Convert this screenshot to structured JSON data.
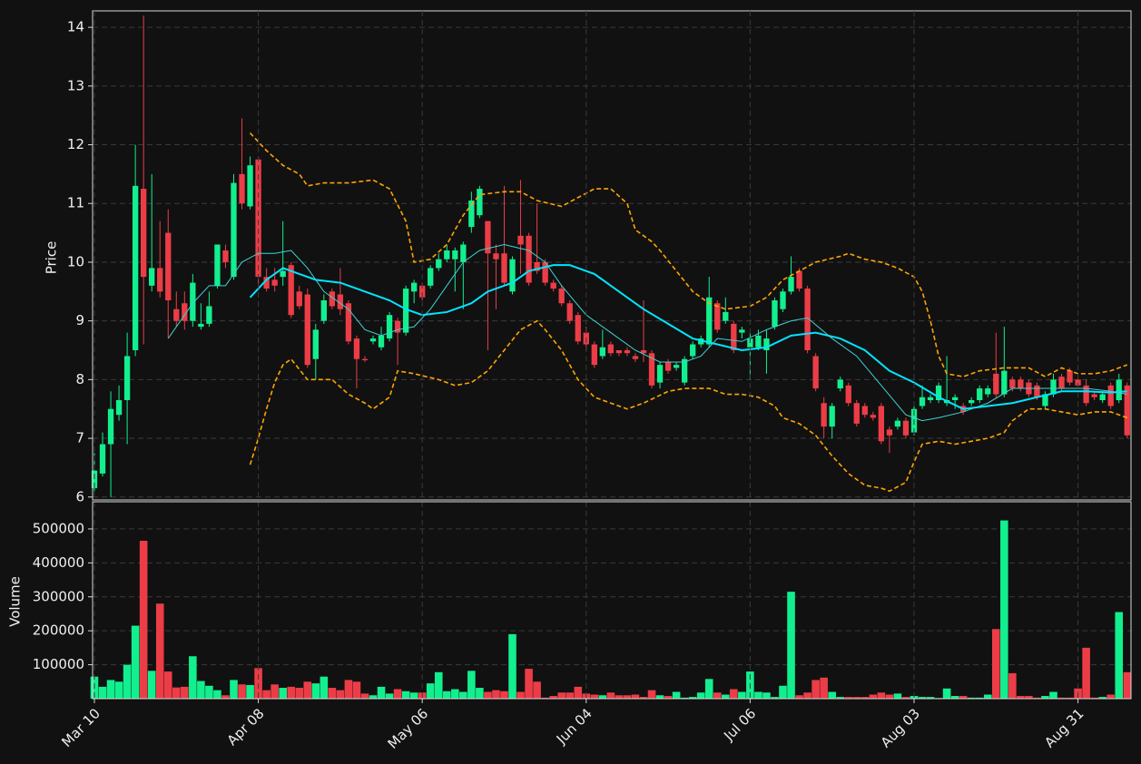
{
  "chart_data": [
    {
      "type": "candlestick",
      "y_label": "Price",
      "xlim": [
        -0.22,
        126.47
      ],
      "ylim": [
        5.95,
        14.28
      ],
      "yticks": [
        6,
        7,
        8,
        9,
        10,
        11,
        12,
        13,
        14
      ],
      "grid": true,
      "up_color": "#12ef8e",
      "down_color": "#ec3d47",
      "open": [
        6.15,
        6.4,
        6.9,
        7.4,
        7.65,
        8.5,
        11.25,
        9.6,
        9.9,
        10.5,
        9.2,
        9.3,
        9.0,
        8.9,
        8.95,
        9.6,
        10.2,
        9.75,
        11.5,
        10.95,
        11.75,
        9.75,
        9.7,
        9.75,
        9.95,
        9.5,
        9.45,
        8.35,
        9.0,
        9.5,
        9.45,
        9.3,
        8.7,
        8.35,
        8.65,
        8.55,
        8.7,
        9.0,
        8.8,
        9.5,
        9.6,
        9.6,
        9.9,
        10.05,
        10.05,
        10.0,
        10.6,
        10.8,
        10.7,
        10.15,
        10.15,
        9.5,
        10.45,
        10.45,
        10.0,
        10.0,
        9.65,
        9.55,
        9.3,
        9.1,
        8.8,
        8.6,
        8.4,
        8.6,
        8.5,
        8.5,
        8.4,
        8.5,
        8.45,
        7.95,
        8.3,
        8.2,
        7.95,
        8.4,
        8.6,
        8.6,
        9.3,
        9.0,
        8.95,
        8.8,
        8.55,
        8.55,
        8.5,
        8.9,
        9.2,
        9.5,
        9.85,
        9.55,
        8.4,
        7.6,
        7.2,
        7.85,
        7.9,
        7.6,
        7.55,
        7.4,
        7.55,
        7.15,
        7.2,
        7.3,
        7.1,
        7.55,
        7.65,
        7.65,
        7.6,
        7.65,
        7.55,
        7.6,
        7.65,
        7.75,
        8.1,
        7.75,
        8.0,
        8.0,
        7.95,
        7.9,
        7.55,
        7.75,
        8.05,
        8.15,
        8.0,
        7.9,
        7.75,
        7.65,
        7.9,
        7.65,
        7.9
      ],
      "high": [
        6.75,
        7.1,
        7.8,
        7.9,
        8.8,
        12.0,
        14.2,
        11.5,
        10.7,
        10.9,
        9.5,
        9.5,
        9.8,
        9.3,
        9.5,
        10.3,
        10.3,
        11.5,
        12.45,
        11.8,
        11.8,
        9.9,
        9.9,
        10.7,
        10.0,
        9.6,
        9.55,
        8.95,
        9.45,
        9.55,
        9.9,
        9.35,
        8.75,
        8.4,
        8.75,
        8.9,
        9.15,
        9.05,
        9.6,
        9.7,
        9.65,
        9.95,
        10.15,
        10.3,
        10.25,
        10.35,
        11.2,
        11.3,
        10.7,
        10.3,
        11.3,
        10.1,
        11.4,
        10.5,
        11.0,
        10.05,
        9.7,
        9.6,
        9.35,
        9.15,
        8.9,
        8.65,
        8.85,
        8.65,
        8.5,
        8.55,
        8.45,
        9.35,
        8.5,
        8.3,
        8.35,
        8.3,
        8.4,
        8.65,
        8.75,
        9.75,
        9.35,
        9.4,
        9.0,
        8.9,
        8.8,
        8.85,
        8.85,
        9.4,
        9.55,
        10.1,
        9.9,
        9.6,
        8.45,
        7.7,
        7.6,
        8.05,
        7.95,
        7.65,
        7.6,
        7.45,
        7.6,
        7.2,
        7.35,
        7.35,
        7.55,
        7.9,
        7.75,
        7.95,
        8.4,
        7.75,
        7.6,
        7.7,
        7.9,
        7.9,
        8.8,
        8.9,
        8.05,
        8.05,
        8.0,
        7.95,
        7.8,
        8.1,
        8.1,
        8.2,
        8.05,
        8.0,
        7.8,
        7.8,
        7.95,
        8.1,
        7.95
      ],
      "low": [
        6.1,
        6.35,
        6.0,
        7.3,
        6.9,
        8.4,
        8.6,
        9.5,
        9.4,
        8.7,
        8.9,
        8.85,
        8.9,
        8.85,
        8.9,
        9.55,
        9.9,
        9.7,
        10.9,
        10.9,
        9.6,
        9.5,
        9.5,
        9.6,
        9.05,
        9.2,
        8.2,
        8.0,
        8.95,
        9.2,
        9.1,
        8.6,
        7.85,
        8.3,
        8.6,
        8.5,
        8.65,
        8.25,
        8.75,
        9.3,
        9.35,
        9.55,
        9.85,
        10.0,
        9.5,
        9.2,
        10.5,
        10.75,
        8.5,
        9.2,
        9.6,
        9.45,
        9.8,
        9.6,
        9.8,
        9.6,
        9.5,
        9.25,
        8.95,
        8.6,
        8.5,
        8.2,
        8.35,
        8.4,
        8.4,
        8.4,
        8.3,
        8.3,
        7.85,
        7.85,
        8.1,
        8.15,
        7.9,
        8.35,
        8.55,
        8.55,
        8.8,
        8.95,
        8.45,
        8.7,
        8.0,
        8.5,
        8.1,
        8.85,
        9.15,
        9.45,
        9.5,
        8.45,
        7.8,
        7.0,
        7.0,
        7.8,
        7.55,
        7.2,
        7.35,
        7.3,
        6.9,
        6.75,
        7.15,
        7.0,
        7.05,
        7.5,
        7.6,
        7.6,
        7.55,
        7.5,
        7.4,
        7.55,
        7.6,
        7.7,
        7.7,
        7.7,
        7.8,
        7.8,
        7.7,
        7.65,
        7.5,
        7.7,
        7.8,
        7.9,
        7.85,
        7.55,
        7.65,
        7.6,
        7.5,
        7.6,
        7.0
      ],
      "close": [
        6.45,
        6.9,
        7.5,
        7.65,
        8.4,
        11.3,
        9.75,
        9.9,
        9.5,
        9.35,
        9.0,
        9.0,
        9.65,
        8.95,
        9.25,
        10.3,
        10.0,
        11.35,
        11.0,
        11.65,
        9.75,
        9.55,
        9.6,
        9.85,
        9.1,
        9.25,
        8.25,
        8.85,
        9.35,
        9.25,
        9.2,
        8.65,
        8.35,
        8.33,
        8.7,
        8.75,
        9.1,
        8.8,
        9.55,
        9.65,
        9.4,
        9.9,
        10.05,
        10.2,
        10.2,
        10.3,
        11.05,
        11.25,
        10.15,
        10.05,
        9.65,
        10.05,
        10.3,
        9.65,
        9.85,
        9.65,
        9.55,
        9.3,
        9.0,
        8.65,
        8.6,
        8.25,
        8.55,
        8.45,
        8.45,
        8.45,
        8.35,
        8.45,
        7.9,
        8.25,
        8.15,
        8.25,
        8.35,
        8.6,
        8.7,
        9.4,
        8.85,
        9.15,
        8.5,
        8.85,
        8.7,
        8.75,
        8.7,
        9.35,
        9.5,
        9.75,
        9.55,
        8.5,
        7.85,
        7.2,
        7.55,
        8.0,
        7.6,
        7.25,
        7.4,
        7.35,
        6.95,
        7.05,
        7.3,
        7.05,
        7.5,
        7.7,
        7.7,
        7.9,
        7.65,
        7.7,
        7.45,
        7.65,
        7.85,
        7.85,
        7.75,
        8.15,
        7.85,
        7.85,
        7.75,
        7.7,
        7.75,
        8.0,
        7.85,
        7.95,
        7.9,
        7.6,
        7.7,
        7.75,
        7.55,
        8.0,
        7.05
      ],
      "lines": [
        {
          "color": "#00e5ff",
          "width": 2,
          "dashed": false,
          "x": [
            19,
            21,
            23,
            25,
            27,
            30,
            33,
            36,
            38,
            40,
            43,
            46,
            48,
            51,
            53,
            56,
            58,
            61,
            64,
            67,
            70,
            73,
            76,
            79,
            82,
            85,
            88,
            91,
            94,
            97,
            100,
            103,
            106,
            109,
            112,
            115,
            118,
            121,
            124,
            126
          ],
          "values": [
            9.4,
            9.7,
            9.9,
            9.8,
            9.7,
            9.65,
            9.5,
            9.35,
            9.2,
            9.1,
            9.15,
            9.3,
            9.5,
            9.65,
            9.85,
            9.95,
            9.95,
            9.8,
            9.5,
            9.2,
            8.95,
            8.7,
            8.6,
            8.5,
            8.55,
            8.75,
            8.8,
            8.7,
            8.5,
            8.15,
            7.95,
            7.7,
            7.5,
            7.55,
            7.6,
            7.7,
            7.8,
            7.8,
            7.78,
            7.8
          ]
        },
        {
          "color": "#3fd3d3",
          "width": 1,
          "dashed": false,
          "x": [
            9,
            12,
            14,
            16,
            18,
            20,
            22,
            24,
            26,
            28,
            31,
            33,
            35,
            37,
            39,
            41,
            43,
            45,
            47,
            50,
            53,
            55,
            57,
            60,
            63,
            66,
            69,
            72,
            74,
            76,
            79,
            82,
            85,
            87,
            90,
            93,
            96,
            99,
            101,
            103,
            106,
            109,
            112,
            115,
            118,
            121,
            124,
            126
          ],
          "values": [
            8.7,
            9.3,
            9.6,
            9.6,
            10.0,
            10.15,
            10.15,
            10.2,
            9.9,
            9.5,
            9.2,
            8.85,
            8.75,
            8.85,
            8.9,
            9.2,
            9.6,
            10.0,
            10.2,
            10.3,
            10.2,
            10.0,
            9.6,
            9.1,
            8.8,
            8.5,
            8.3,
            8.3,
            8.4,
            8.7,
            8.65,
            8.85,
            9.0,
            9.05,
            8.7,
            8.4,
            7.9,
            7.4,
            7.3,
            7.35,
            7.45,
            7.6,
            7.85,
            7.85,
            7.85,
            7.85,
            7.8,
            7.75
          ]
        },
        {
          "color": "#ffa500",
          "width": 1.6,
          "dashed": true,
          "x": [
            19,
            21,
            23,
            25,
            26,
            28,
            31,
            34,
            36,
            38,
            39,
            41,
            43,
            45,
            47,
            50,
            52,
            54,
            57,
            59,
            61,
            63,
            65,
            66,
            68,
            69,
            71,
            73,
            75,
            77,
            80,
            82,
            84,
            86,
            88,
            91,
            92,
            94,
            96,
            98,
            100,
            101,
            102,
            103,
            104,
            106,
            108,
            111,
            114,
            116,
            118,
            120,
            122,
            124,
            126
          ],
          "values": [
            12.2,
            11.9,
            11.65,
            11.5,
            11.3,
            11.35,
            11.35,
            11.4,
            11.25,
            10.7,
            10.0,
            10.05,
            10.3,
            10.8,
            11.15,
            11.2,
            11.2,
            11.05,
            10.95,
            11.1,
            11.25,
            11.25,
            11.0,
            10.55,
            10.35,
            10.2,
            9.85,
            9.5,
            9.3,
            9.2,
            9.25,
            9.4,
            9.7,
            9.85,
            10.0,
            10.1,
            10.15,
            10.05,
            10.0,
            9.9,
            9.75,
            9.5,
            9.0,
            8.4,
            8.1,
            8.05,
            8.15,
            8.2,
            8.2,
            8.05,
            8.2,
            8.1,
            8.1,
            8.15,
            8.25
          ]
        },
        {
          "color": "#ffa500",
          "width": 1.6,
          "dashed": true,
          "x": [
            19,
            20,
            21,
            22,
            23,
            24,
            26,
            29,
            31,
            33,
            34,
            36,
            37,
            39,
            42,
            44,
            46,
            48,
            50,
            52,
            54,
            55,
            57,
            59,
            61,
            63,
            65,
            67,
            70,
            72,
            75,
            77,
            79,
            81,
            83,
            84,
            86,
            88,
            90,
            92,
            94,
            96,
            97,
            99,
            100,
            101,
            103,
            105,
            107,
            109,
            111,
            112,
            114,
            116,
            118,
            120,
            122,
            124,
            126
          ],
          "values": [
            6.55,
            7.0,
            7.5,
            7.95,
            8.25,
            8.35,
            8.0,
            8.0,
            7.75,
            7.6,
            7.5,
            7.7,
            8.15,
            8.1,
            8.0,
            7.9,
            7.95,
            8.15,
            8.5,
            8.85,
            9.0,
            8.85,
            8.5,
            8.0,
            7.7,
            7.6,
            7.5,
            7.6,
            7.8,
            7.85,
            7.85,
            7.75,
            7.75,
            7.7,
            7.55,
            7.35,
            7.25,
            7.05,
            6.7,
            6.4,
            6.2,
            6.15,
            6.1,
            6.25,
            6.6,
            6.9,
            6.95,
            6.9,
            6.95,
            7.0,
            7.1,
            7.3,
            7.5,
            7.5,
            7.45,
            7.4,
            7.45,
            7.45,
            7.35
          ]
        }
      ]
    },
    {
      "type": "bar",
      "y_label": "Volume",
      "xlim": [
        -0.22,
        126.47
      ],
      "ylim": [
        0,
        580000
      ],
      "yticks": [
        100000,
        200000,
        300000,
        400000,
        500000
      ],
      "grid": true,
      "categories": [
        "Mar 10",
        null,
        null,
        null,
        null,
        null,
        null,
        null,
        null,
        null,
        null,
        null,
        null,
        null,
        null,
        null,
        null,
        null,
        null,
        null,
        "Apr 08",
        null,
        null,
        null,
        null,
        null,
        null,
        null,
        null,
        null,
        null,
        null,
        null,
        null,
        null,
        null,
        null,
        null,
        null,
        null,
        "May 06",
        null,
        null,
        null,
        null,
        null,
        null,
        null,
        null,
        null,
        null,
        null,
        null,
        null,
        null,
        null,
        null,
        null,
        null,
        null,
        "Jun 04",
        null,
        null,
        null,
        null,
        null,
        null,
        null,
        null,
        null,
        null,
        null,
        null,
        null,
        null,
        null,
        null,
        null,
        null,
        null,
        "Jul 06",
        null,
        null,
        null,
        null,
        null,
        null,
        null,
        null,
        null,
        null,
        null,
        null,
        null,
        null,
        null,
        null,
        null,
        null,
        null,
        "Aug 03",
        null,
        null,
        null,
        null,
        null,
        null,
        null,
        null,
        null,
        null,
        null,
        null,
        null,
        null,
        null,
        null,
        null,
        null,
        null,
        "Aug 31",
        null,
        null,
        null,
        null,
        null,
        null
      ],
      "values": [
        65000,
        35000,
        55000,
        50000,
        100000,
        215000,
        465000,
        82000,
        280000,
        80000,
        33000,
        35000,
        125000,
        52000,
        38000,
        25000,
        10000,
        55000,
        42000,
        40000,
        90000,
        25000,
        42000,
        32000,
        35000,
        32000,
        50000,
        45000,
        65000,
        32000,
        25000,
        55000,
        50000,
        15000,
        10000,
        35000,
        15000,
        28000,
        22000,
        18000,
        18000,
        45000,
        78000,
        22000,
        28000,
        20000,
        82000,
        32000,
        20000,
        25000,
        22000,
        190000,
        20000,
        88000,
        50000,
        3000,
        8000,
        18000,
        18000,
        35000,
        15000,
        12000,
        10000,
        18000,
        10000,
        10000,
        12000,
        5000,
        25000,
        10000,
        8000,
        20000,
        3000,
        5000,
        18000,
        58000,
        18000,
        12000,
        28000,
        20000,
        80000,
        20000,
        18000,
        5000,
        38000,
        315000,
        10000,
        18000,
        55000,
        62000,
        20000,
        5000,
        5000,
        5000,
        5000,
        12000,
        18000,
        12000,
        15000,
        5000,
        8000,
        5000,
        5000,
        2000,
        30000,
        8000,
        8000,
        3000,
        3000,
        12000,
        205000,
        525000,
        75000,
        8000,
        8000,
        3000,
        8000,
        20000,
        3000,
        3000,
        30000,
        150000,
        3000,
        5000,
        12000,
        255000,
        78000
      ]
    }
  ]
}
